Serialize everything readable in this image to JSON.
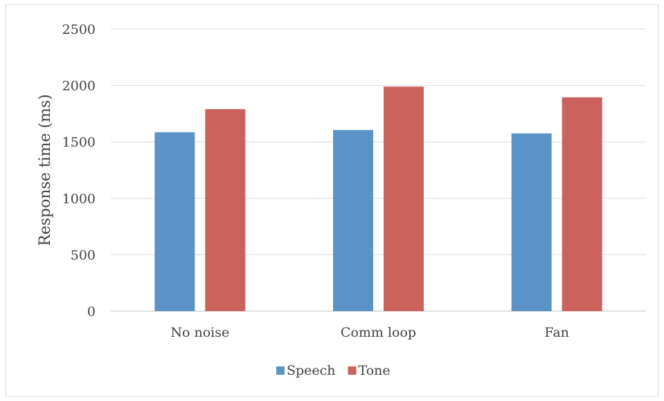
{
  "chart_data": {
    "type": "bar",
    "title": "",
    "xlabel": "",
    "ylabel": "Response time (ms)",
    "ylim": [
      0,
      2500
    ],
    "yticks": [
      0,
      500,
      1000,
      1500,
      2000,
      2500
    ],
    "categories": [
      "No noise",
      "Comm loop",
      "Fan"
    ],
    "series": [
      {
        "name": "Speech",
        "values": [
          1585,
          1605,
          1575
        ],
        "color": "#5b93c7"
      },
      {
        "name": "Tone",
        "values": [
          1790,
          1990,
          1895
        ],
        "color": "#cc625c"
      }
    ],
    "grid": true,
    "legend_position": "bottom"
  }
}
